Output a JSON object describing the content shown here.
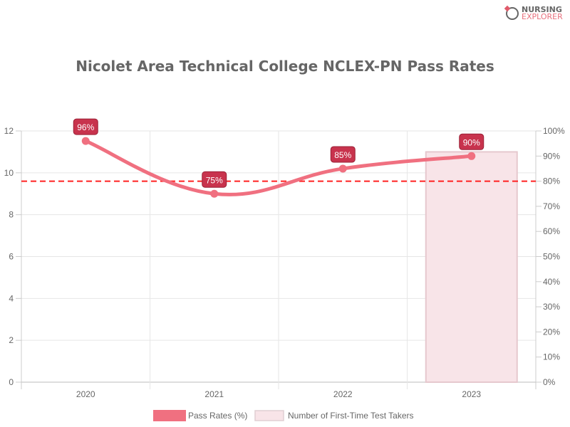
{
  "logo": {
    "line1": "NURSING",
    "line2": "EXPLORER"
  },
  "chart_data": {
    "type": "bar+line",
    "title": "Nicolet Area Technical College NCLEX-PN Pass Rates",
    "categories": [
      "2020",
      "2021",
      "2022",
      "2023"
    ],
    "series": [
      {
        "name": "Pass Rates (%)",
        "type": "line",
        "axis": "right",
        "values": [
          96,
          75,
          85,
          90
        ],
        "labels": [
          "96%",
          "75%",
          "85%",
          "90%"
        ],
        "color": "#f07080"
      },
      {
        "name": "Number of First-Time Test Takers",
        "type": "bar",
        "axis": "left",
        "values": [
          0,
          0,
          0,
          11
        ],
        "color": "#f8e4e8"
      }
    ],
    "reference_line": {
      "axis": "right",
      "value": 80,
      "color": "#ff2020",
      "style": "dashed"
    },
    "left_axis": {
      "ylim": [
        0,
        12
      ],
      "ticks": [
        "0",
        "2",
        "4",
        "6",
        "8",
        "10",
        "12"
      ]
    },
    "right_axis": {
      "ylim": [
        0,
        100
      ],
      "ticks": [
        "0%",
        "10%",
        "20%",
        "30%",
        "40%",
        "50%",
        "60%",
        "70%",
        "80%",
        "90%",
        "100%"
      ]
    },
    "grid": true,
    "legend": "bottom",
    "label_color": "#c8334d"
  }
}
